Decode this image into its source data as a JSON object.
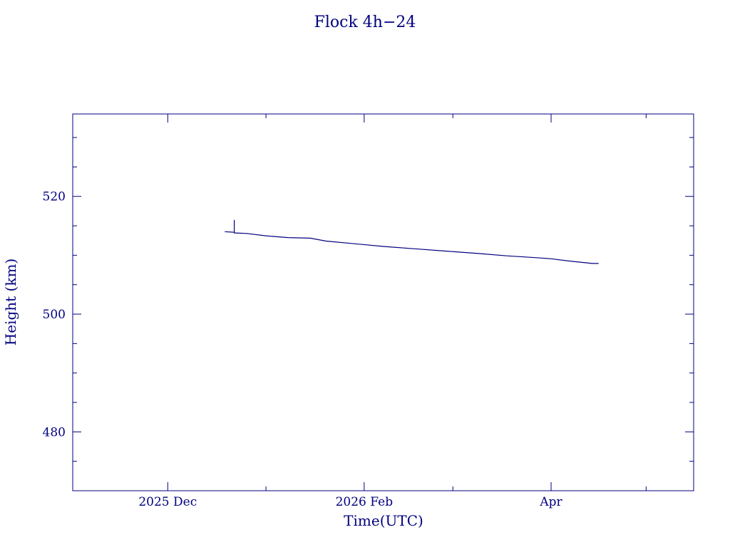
{
  "chart_data": {
    "type": "line",
    "title": "Flock 4h−24",
    "xlabel": "Time(UTC)",
    "ylabel": "Height (km)",
    "x_axis": {
      "type": "date",
      "range": [
        "2025-11-01",
        "2026-05-16"
      ],
      "major_ticks": [
        {
          "date": "2025-12-01",
          "label": "2025 Dec"
        },
        {
          "date": "2026-02-01",
          "label": "2026 Feb"
        },
        {
          "date": "2026-04-01",
          "label": "Apr"
        }
      ],
      "minor_ticks": [
        "2026-01-01",
        "2026-03-01",
        "2026-05-01"
      ]
    },
    "y_axis": {
      "range": [
        470,
        534
      ],
      "major_ticks": [
        480,
        500,
        520
      ],
      "minor_step": 5
    },
    "grid": false,
    "legend": "none",
    "colors": {
      "axis": "#00007f",
      "series": "#00007f"
    },
    "series": [
      {
        "points": [
          [
            "2025-12-19",
            514.0
          ],
          [
            "2025-12-22",
            513.9
          ],
          [
            "2025-12-22",
            516.0
          ],
          [
            "2025-12-22",
            513.8
          ],
          [
            "2025-12-26",
            513.7
          ],
          [
            "2026-01-01",
            513.3
          ],
          [
            "2026-01-08",
            513.0
          ],
          [
            "2026-01-15",
            512.9
          ],
          [
            "2026-01-20",
            512.4
          ],
          [
            "2026-01-28",
            512.0
          ],
          [
            "2026-02-07",
            511.5
          ],
          [
            "2026-02-17",
            511.1
          ],
          [
            "2026-02-27",
            510.7
          ],
          [
            "2026-03-09",
            510.3
          ],
          [
            "2026-03-18",
            509.9
          ],
          [
            "2026-03-27",
            509.6
          ],
          [
            "2026-04-01",
            509.4
          ],
          [
            "2026-04-07",
            509.0
          ],
          [
            "2026-04-14",
            508.6
          ],
          [
            "2026-04-16",
            508.6
          ]
        ]
      }
    ]
  }
}
